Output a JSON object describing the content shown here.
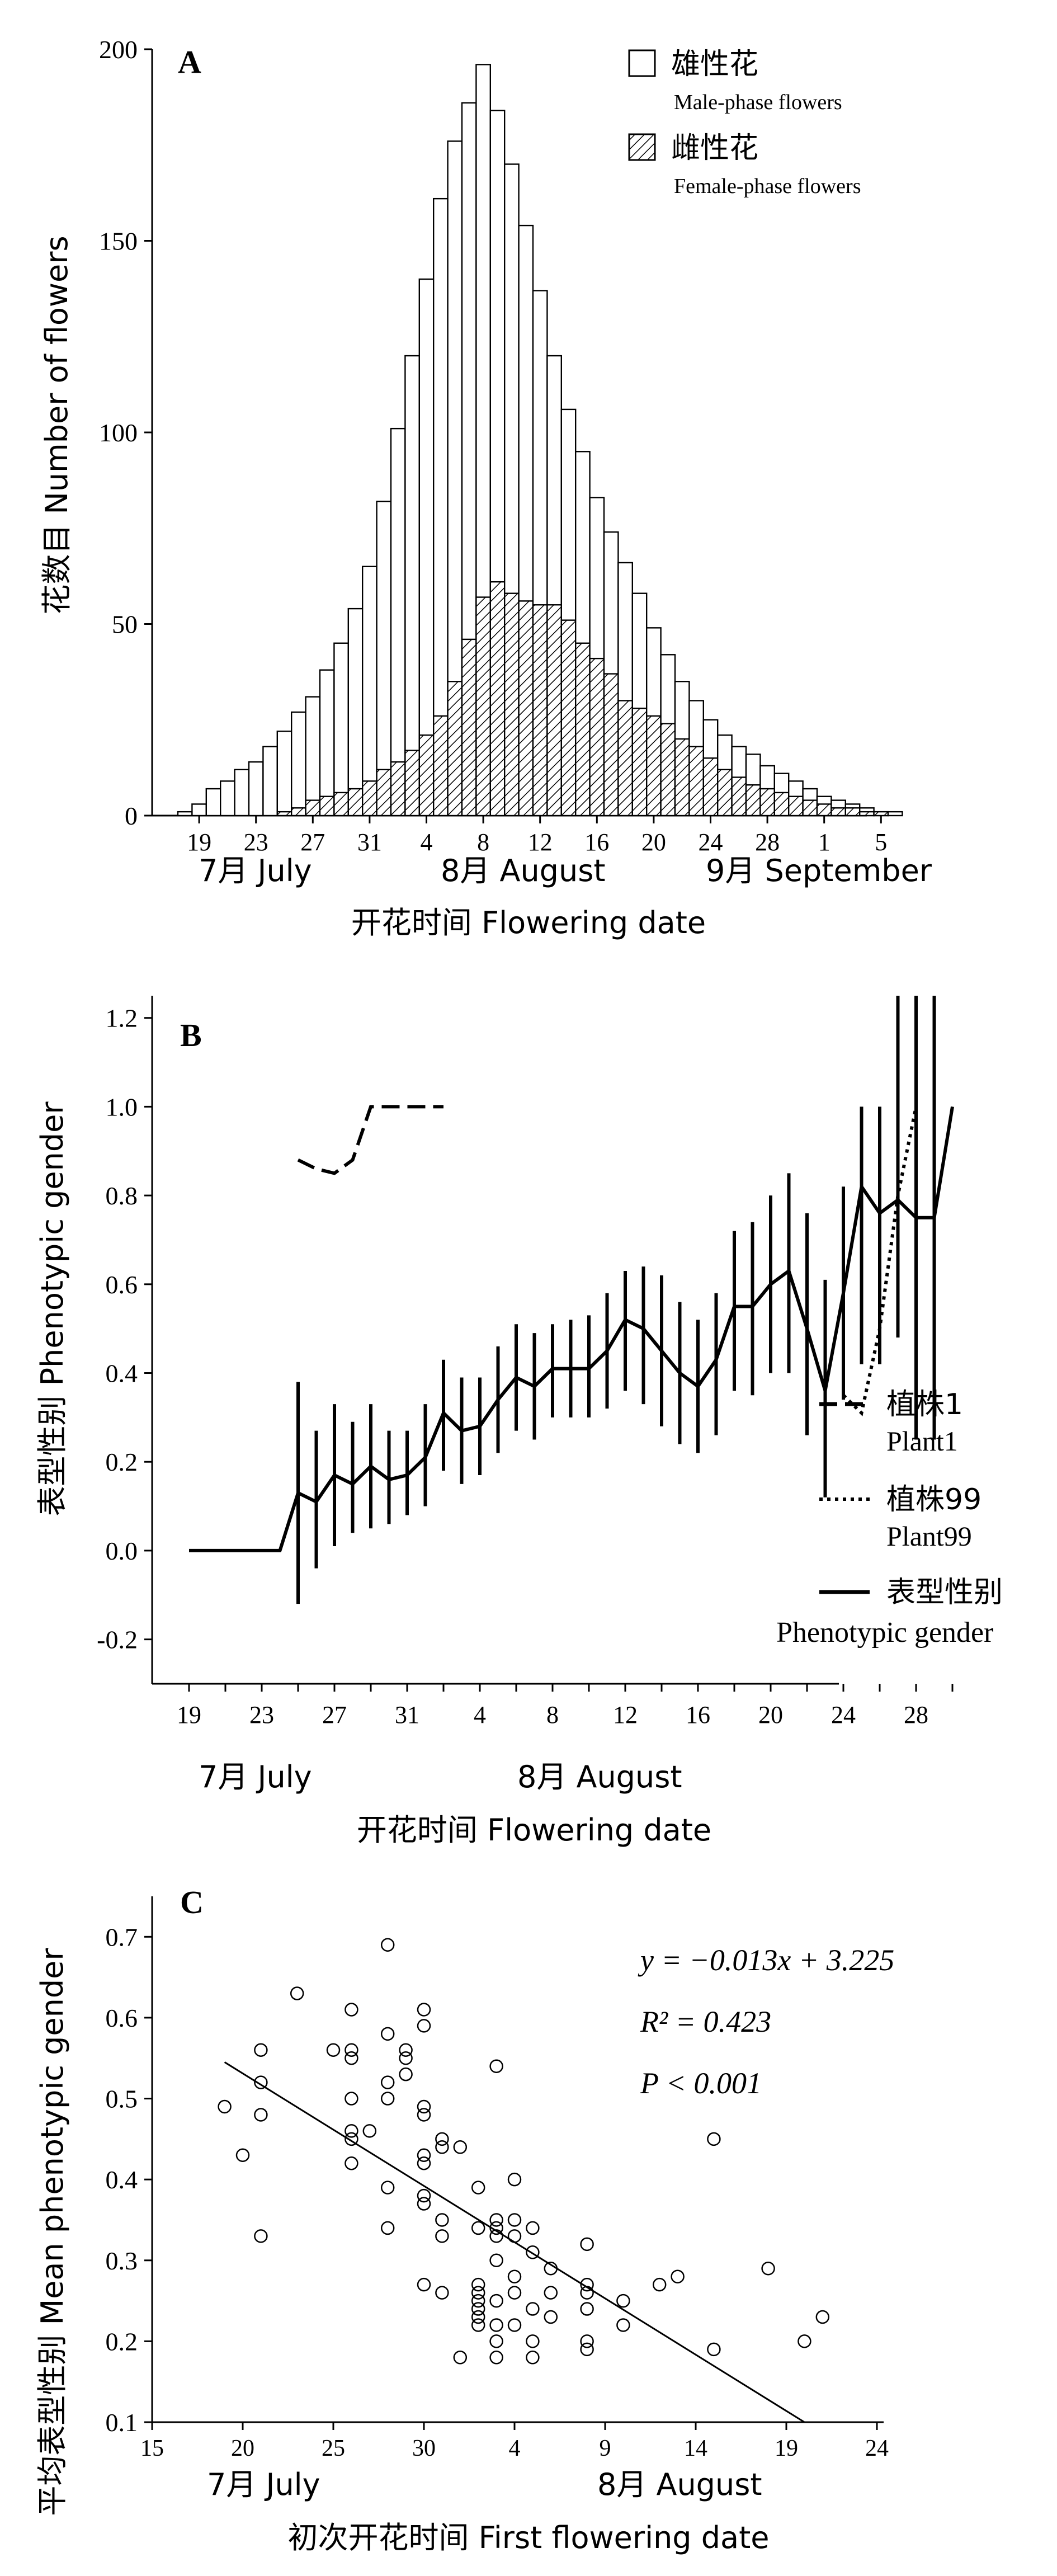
{
  "panels": {
    "A": {
      "label": "A",
      "ylabel": "花数目 Number of flowers",
      "xlabel": "开花时间 Flowering date",
      "legend": [
        {
          "cn": "雄性花",
          "en": "Male-phase flowers",
          "pattern": "open"
        },
        {
          "cn": "雌性花",
          "en": "Female-phase flowers",
          "pattern": "hatched"
        }
      ],
      "month_labels": [
        "7月  July",
        "8月  August",
        "9月  September"
      ]
    },
    "B": {
      "label": "B",
      "ylabel": "表型性别  Phenotypic gender",
      "xlabel": "开花时间  Flowering date",
      "legend": [
        {
          "cn": "植株1",
          "en": "Plant1",
          "style": "dashed"
        },
        {
          "cn": "植株99",
          "en": "Plant99",
          "style": "dotted"
        },
        {
          "cn": "表型性别",
          "en": "Phenotypic gender",
          "style": "solid"
        }
      ],
      "month_labels": [
        "7月  July",
        "8月  August"
      ]
    },
    "C": {
      "label": "C",
      "ylabel": "平均表型性别  Mean phenotypic gender",
      "xlabel": "初次开花时间  First flowering date",
      "equation": "y = −0.013x + 3.225",
      "r2": "R² = 0.423",
      "p": "P < 0.001",
      "month_labels": [
        "7月  July",
        "8月  August"
      ]
    }
  },
  "chart_data": [
    {
      "type": "bar",
      "panel": "A",
      "title": "",
      "xlabel": "开花时间 Flowering date",
      "ylabel": "花数目 Number of flowers",
      "ylim": [
        0,
        200
      ],
      "yticks": [
        0,
        50,
        100,
        150,
        200
      ],
      "x_tick_labels": [
        "19",
        "23",
        "27",
        "31",
        "4",
        "8",
        "12",
        "16",
        "20",
        "24",
        "28",
        "1",
        "5"
      ],
      "categories": [
        "Jul 18",
        "Jul 19",
        "Jul 20",
        "Jul 21",
        "Jul 22",
        "Jul 23",
        "Jul 24",
        "Jul 25",
        "Jul 26",
        "Jul 27",
        "Jul 28",
        "Jul 29",
        "Jul 30",
        "Jul 31",
        "Aug 1",
        "Aug 2",
        "Aug 3",
        "Aug 4",
        "Aug 5",
        "Aug 6",
        "Aug 7",
        "Aug 8",
        "Aug 9",
        "Aug 10",
        "Aug 11",
        "Aug 12",
        "Aug 13",
        "Aug 14",
        "Aug 15",
        "Aug 16",
        "Aug 17",
        "Aug 18",
        "Aug 19",
        "Aug 20",
        "Aug 21",
        "Aug 22",
        "Aug 23",
        "Aug 24",
        "Aug 25",
        "Aug 26",
        "Aug 27",
        "Aug 28",
        "Aug 29",
        "Aug 30",
        "Aug 31",
        "Sep 1",
        "Sep 2",
        "Sep 3",
        "Sep 4",
        "Sep 5",
        "Sep 6"
      ],
      "series": [
        {
          "name": "雄性花 Male-phase flowers",
          "values": [
            1,
            3,
            7,
            9,
            12,
            14,
            18,
            22,
            27,
            31,
            38,
            45,
            54,
            65,
            82,
            101,
            120,
            140,
            161,
            176,
            186,
            196,
            184,
            170,
            154,
            137,
            120,
            106,
            95,
            83,
            74,
            66,
            58,
            49,
            42,
            35,
            30,
            25,
            21,
            18,
            16,
            13,
            11,
            9,
            7,
            5,
            4,
            3,
            2,
            1,
            1
          ]
        },
        {
          "name": "雌性花 Female-phase flowers",
          "values": [
            0,
            0,
            0,
            0,
            0,
            0,
            0,
            1,
            2,
            4,
            5,
            6,
            7,
            9,
            12,
            14,
            17,
            21,
            26,
            35,
            46,
            57,
            61,
            58,
            56,
            55,
            55,
            51,
            45,
            41,
            37,
            30,
            28,
            26,
            24,
            20,
            18,
            15,
            12,
            10,
            8,
            7,
            6,
            5,
            4,
            3,
            2,
            2,
            1,
            1,
            0
          ]
        }
      ]
    },
    {
      "type": "line",
      "panel": "B",
      "title": "",
      "xlabel": "开花时间  Flowering date",
      "ylabel": "表型性别  Phenotypic gender",
      "ylim": [
        -0.3,
        1.25
      ],
      "yticks": [
        -0.2,
        0.0,
        0.2,
        0.4,
        0.6,
        0.8,
        1.0,
        1.2
      ],
      "x_tick_labels": [
        "19",
        "23",
        "27",
        "31",
        "4",
        "8",
        "12",
        "16",
        "20",
        "24",
        "28"
      ],
      "series": [
        {
          "name": "植株1 Plant1",
          "style": "dashed",
          "x": [
            "Jul 25",
            "Jul 26",
            "Jul 27",
            "Jul 28",
            "Jul 29",
            "Jul 30",
            "Jul 31",
            "Aug 1",
            "Aug 2"
          ],
          "y": [
            0.88,
            0.86,
            0.85,
            0.88,
            1.0,
            1.0,
            1.0,
            1.0,
            1.0
          ]
        },
        {
          "name": "植株99 Plant99",
          "style": "dotted",
          "x": [
            "Aug 24",
            "Aug 25",
            "Aug 26",
            "Aug 27",
            "Aug 28"
          ],
          "y": [
            0.35,
            0.31,
            0.5,
            0.8,
            1.0
          ]
        },
        {
          "name": "表型性别 Phenotypic gender",
          "style": "solid",
          "x": [
            "Jul 19",
            "Jul 20",
            "Jul 21",
            "Jul 22",
            "Jul 23",
            "Jul 24",
            "Jul 25",
            "Jul 26",
            "Jul 27",
            "Jul 28",
            "Jul 29",
            "Jul 30",
            "Jul 31",
            "Aug 1",
            "Aug 2",
            "Aug 3",
            "Aug 4",
            "Aug 5",
            "Aug 6",
            "Aug 7",
            "Aug 8",
            "Aug 9",
            "Aug 10",
            "Aug 11",
            "Aug 12",
            "Aug 13",
            "Aug 14",
            "Aug 15",
            "Aug 16",
            "Aug 17",
            "Aug 18",
            "Aug 19",
            "Aug 20",
            "Aug 21",
            "Aug 22",
            "Aug 23",
            "Aug 24",
            "Aug 25",
            "Aug 26",
            "Aug 27",
            "Aug 28",
            "Aug 29",
            "Aug 30"
          ],
          "y": [
            0,
            0,
            0,
            0,
            0,
            0,
            0.13,
            0.11,
            0.17,
            0.15,
            0.19,
            0.16,
            0.17,
            0.21,
            0.31,
            0.27,
            0.28,
            0.34,
            0.39,
            0.37,
            0.41,
            0.41,
            0.41,
            0.45,
            0.52,
            0.5,
            0.45,
            0.4,
            0.37,
            0.43,
            0.55,
            0.55,
            0.6,
            0.63,
            0.5,
            0.36,
            0.58,
            0.82,
            0.76,
            0.79,
            0.75,
            0.75,
            1.0
          ],
          "err_low": [
            null,
            null,
            null,
            null,
            null,
            null,
            -0.12,
            -0.04,
            0.01,
            0.04,
            0.05,
            0.06,
            0.08,
            0.1,
            0.18,
            0.15,
            0.17,
            0.22,
            0.27,
            0.25,
            0.3,
            0.3,
            0.3,
            0.32,
            0.36,
            0.33,
            0.28,
            0.24,
            0.22,
            0.26,
            0.36,
            0.35,
            0.4,
            0.4,
            0.26,
            0.12,
            0.34,
            0.42,
            0.42,
            0.48,
            0.25,
            0.25,
            null
          ],
          "err_high": [
            null,
            null,
            null,
            null,
            null,
            null,
            0.38,
            0.27,
            0.33,
            0.29,
            0.33,
            0.27,
            0.27,
            0.33,
            0.43,
            0.39,
            0.39,
            0.46,
            0.51,
            0.49,
            0.51,
            0.52,
            0.53,
            0.58,
            0.63,
            0.64,
            0.62,
            0.56,
            0.52,
            0.58,
            0.72,
            0.74,
            0.8,
            0.85,
            0.76,
            0.61,
            0.82,
            1.0,
            1.0,
            1.25,
            1.25,
            1.25,
            null
          ]
        }
      ]
    },
    {
      "type": "scatter",
      "panel": "C",
      "title": "",
      "xlabel": "初次开花时间  First flowering date",
      "ylabel": "平均表型性别  Mean phenotypic gender",
      "ylim": [
        0.1,
        0.75
      ],
      "yticks": [
        0.1,
        0.2,
        0.3,
        0.4,
        0.5,
        0.6,
        0.7
      ],
      "x_tick_labels": [
        "15",
        "20",
        "25",
        "30",
        "4",
        "9",
        "14",
        "19",
        "24"
      ],
      "x_dates": [
        "Jul 15",
        "Aug 21"
      ],
      "fit": {
        "slope": -0.013,
        "intercept": 3.225,
        "x_start": "Jul 19",
        "x_end": "Aug 20",
        "y_start": 0.545,
        "y_end": 0.1
      },
      "points": [
        [
          "Jul 19",
          0.49
        ],
        [
          "Jul 20",
          0.43
        ],
        [
          "Jul 21",
          0.33
        ],
        [
          "Jul 21",
          0.48
        ],
        [
          "Jul 21",
          0.52
        ],
        [
          "Jul 21",
          0.56
        ],
        [
          "Jul 23",
          0.63
        ],
        [
          "Jul 25",
          0.56
        ],
        [
          "Jul 26",
          0.61
        ],
        [
          "Jul 26",
          0.56
        ],
        [
          "Jul 26",
          0.55
        ],
        [
          "Jul 26",
          0.5
        ],
        [
          "Jul 26",
          0.46
        ],
        [
          "Jul 26",
          0.45
        ],
        [
          "Jul 26",
          0.42
        ],
        [
          "Jul 27",
          0.46
        ],
        [
          "Jul 28",
          0.69
        ],
        [
          "Jul 28",
          0.58
        ],
        [
          "Jul 28",
          0.52
        ],
        [
          "Jul 28",
          0.5
        ],
        [
          "Jul 28",
          0.39
        ],
        [
          "Jul 28",
          0.34
        ],
        [
          "Jul 29",
          0.56
        ],
        [
          "Jul 29",
          0.55
        ],
        [
          "Jul 29",
          0.53
        ],
        [
          "Jul 30",
          0.61
        ],
        [
          "Jul 30",
          0.59
        ],
        [
          "Jul 30",
          0.49
        ],
        [
          "Jul 30",
          0.48
        ],
        [
          "Jul 30",
          0.43
        ],
        [
          "Jul 30",
          0.42
        ],
        [
          "Jul 30",
          0.38
        ],
        [
          "Jul 30",
          0.37
        ],
        [
          "Jul 30",
          0.27
        ],
        [
          "Jul 31",
          0.45
        ],
        [
          "Jul 31",
          0.44
        ],
        [
          "Jul 31",
          0.35
        ],
        [
          "Jul 31",
          0.33
        ],
        [
          "Jul 31",
          0.26
        ],
        [
          "Aug 1",
          0.44
        ],
        [
          "Aug 1",
          0.18
        ],
        [
          "Aug 2",
          0.39
        ],
        [
          "Aug 2",
          0.34
        ],
        [
          "Aug 2",
          0.27
        ],
        [
          "Aug 2",
          0.26
        ],
        [
          "Aug 2",
          0.25
        ],
        [
          "Aug 2",
          0.24
        ],
        [
          "Aug 2",
          0.23
        ],
        [
          "Aug 2",
          0.22
        ],
        [
          "Aug 3",
          0.54
        ],
        [
          "Aug 3",
          0.35
        ],
        [
          "Aug 3",
          0.34
        ],
        [
          "Aug 3",
          0.33
        ],
        [
          "Aug 3",
          0.3
        ],
        [
          "Aug 3",
          0.25
        ],
        [
          "Aug 3",
          0.22
        ],
        [
          "Aug 3",
          0.2
        ],
        [
          "Aug 3",
          0.18
        ],
        [
          "Aug 4",
          0.4
        ],
        [
          "Aug 4",
          0.35
        ],
        [
          "Aug 4",
          0.33
        ],
        [
          "Aug 4",
          0.28
        ],
        [
          "Aug 4",
          0.26
        ],
        [
          "Aug 4",
          0.22
        ],
        [
          "Aug 5",
          0.34
        ],
        [
          "Aug 5",
          0.31
        ],
        [
          "Aug 5",
          0.24
        ],
        [
          "Aug 5",
          0.2
        ],
        [
          "Aug 5",
          0.18
        ],
        [
          "Aug 6",
          0.29
        ],
        [
          "Aug 6",
          0.26
        ],
        [
          "Aug 6",
          0.23
        ],
        [
          "Aug 8",
          0.32
        ],
        [
          "Aug 8",
          0.27
        ],
        [
          "Aug 8",
          0.26
        ],
        [
          "Aug 8",
          0.24
        ],
        [
          "Aug 8",
          0.2
        ],
        [
          "Aug 8",
          0.19
        ],
        [
          "Aug 10",
          0.25
        ],
        [
          "Aug 10",
          0.22
        ],
        [
          "Aug 12",
          0.27
        ],
        [
          "Aug 13",
          0.28
        ],
        [
          "Aug 15",
          0.45
        ],
        [
          "Aug 15",
          0.19
        ],
        [
          "Aug 18",
          0.29
        ],
        [
          "Aug 20",
          0.2
        ],
        [
          "Aug 21",
          0.23
        ]
      ]
    }
  ]
}
